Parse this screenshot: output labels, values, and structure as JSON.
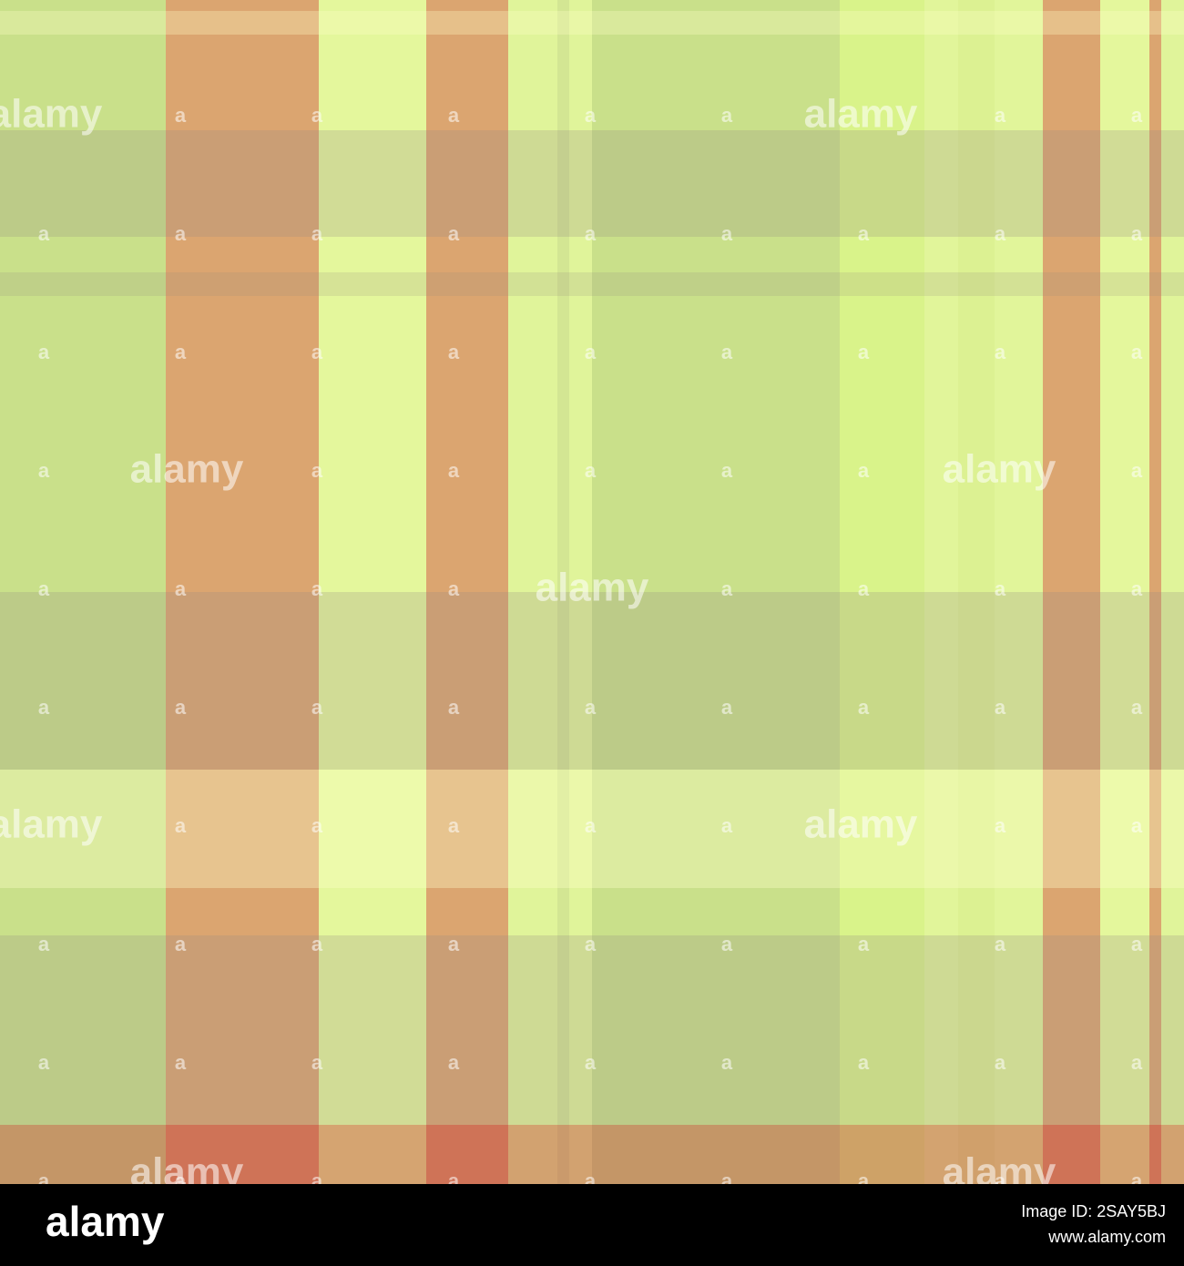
{
  "watermark": {
    "word": "alamy",
    "letter": "a"
  },
  "footer": {
    "logo": "alamy",
    "image_id": "Image ID: 2SAY5BJ",
    "url": "www.alamy.com"
  }
}
